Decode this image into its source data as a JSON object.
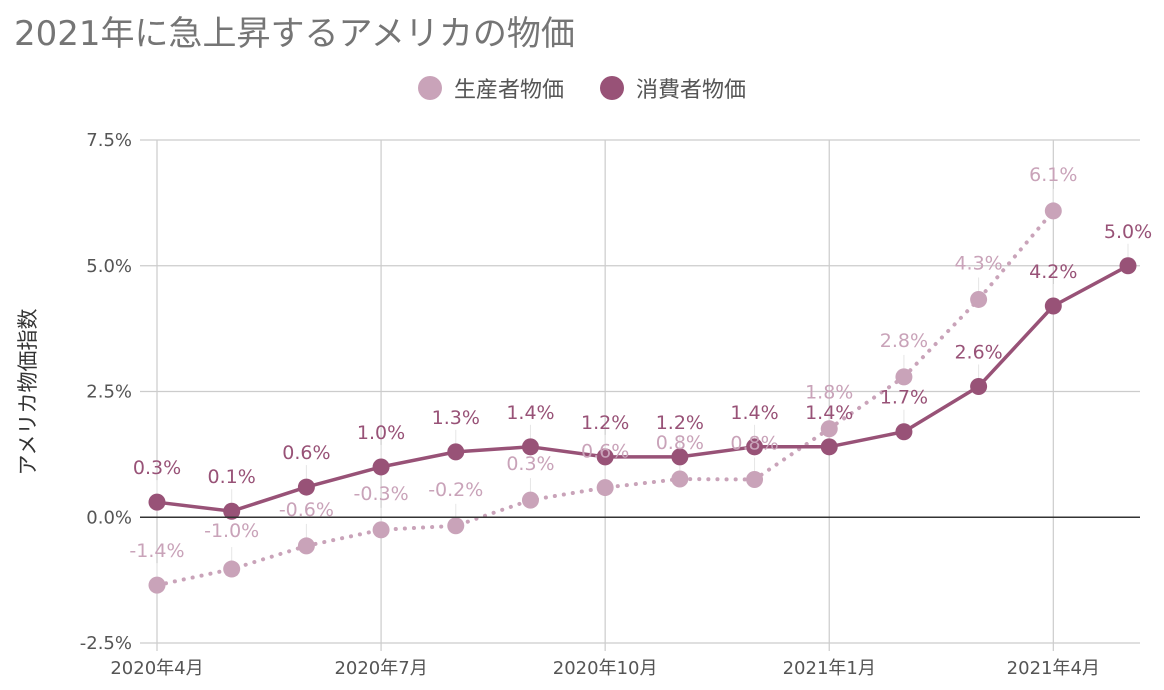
{
  "chart_data": {
    "type": "line",
    "title": "2021年に急上昇するアメリカの物価",
    "ylabel": "アメリカ物価指数",
    "ylim": [
      -2.5,
      7.5
    ],
    "y_ticks": [
      "7.5%",
      "5.0%",
      "2.5%",
      "0.0%",
      "-2.5%"
    ],
    "y_tick_values": [
      7.5,
      5.0,
      2.5,
      0.0,
      -2.5
    ],
    "x_ticks": [
      "2020年4月",
      "2020年7月",
      "2020年10月",
      "2021年1月",
      "2021年4月"
    ],
    "x_tick_indices": [
      0,
      3,
      6,
      9,
      12
    ],
    "x": [
      "2020-04",
      "2020-05",
      "2020-06",
      "2020-07",
      "2020-08",
      "2020-09",
      "2020-10",
      "2020-11",
      "2020-12",
      "2021-01",
      "2021-02",
      "2021-03",
      "2021-04",
      "2021-05"
    ],
    "grid": true,
    "legend_position": "top",
    "series": [
      {
        "name": "生産者物価",
        "color": "#c9a3b9",
        "style": "dotted",
        "values": [
          -1.35,
          -1.03,
          -0.57,
          -0.25,
          -0.17,
          0.34,
          0.59,
          0.76,
          0.75,
          1.76,
          2.79,
          4.33,
          6.09,
          null
        ],
        "labels": [
          "-1.4%",
          "-1.0%",
          "-0.6%",
          "-0.3%",
          "-0.2%",
          "0.3%",
          "0.6%",
          "0.8%",
          "0.8%",
          "1.8%",
          "2.8%",
          "4.3%",
          "6.1%",
          ""
        ]
      },
      {
        "name": "消費者物価",
        "color": "#985277",
        "style": "solid",
        "values": [
          0.3,
          0.12,
          0.6,
          1.0,
          1.3,
          1.4,
          1.2,
          1.2,
          1.4,
          1.4,
          1.7,
          2.6,
          4.2,
          5.0
        ],
        "labels": [
          "0.3%",
          "0.1%",
          "0.6%",
          "1.0%",
          "1.3%",
          "1.4%",
          "1.2%",
          "1.2%",
          "1.4%",
          "1.4%",
          "1.7%",
          "2.6%",
          "4.2%",
          "5.0%"
        ]
      }
    ]
  }
}
